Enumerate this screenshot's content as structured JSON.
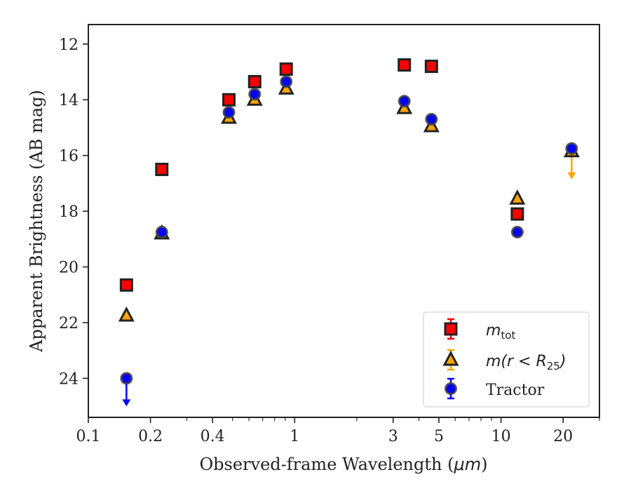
{
  "chart_data": {
    "type": "scatter",
    "xlabel_prefix": "Observed-frame Wavelength (",
    "xlabel_unit": "μm",
    "xlabel_suffix": ")",
    "ylabel": "Apparent Brightness (AB mag)",
    "xscale": "log",
    "xlim": [
      0.1,
      30
    ],
    "ylim": [
      25.4,
      11.3
    ],
    "y_inverted": true,
    "xticks": [
      0.1,
      0.2,
      0.4,
      1,
      3,
      5,
      10,
      20
    ],
    "xtick_labels": [
      "0.1",
      "0.2",
      "0.4",
      "1",
      "3",
      "5",
      "10",
      "20"
    ],
    "yticks": [
      12,
      14,
      16,
      18,
      20,
      22,
      24
    ],
    "ytick_labels": [
      "12",
      "14",
      "16",
      "18",
      "20",
      "22",
      "24"
    ],
    "grid": false,
    "legend_position": "lower-right",
    "series": [
      {
        "name": "m_tot",
        "legend_math": "m",
        "legend_sub": "tot",
        "marker": "square",
        "color": "#ff0000",
        "edge_color": "#222222",
        "points": [
          {
            "x": 0.153,
            "y": 20.65
          },
          {
            "x": 0.227,
            "y": 16.5
          },
          {
            "x": 0.48,
            "y": 14.0
          },
          {
            "x": 0.64,
            "y": 13.35
          },
          {
            "x": 0.91,
            "y": 12.9
          },
          {
            "x": 3.4,
            "y": 12.75
          },
          {
            "x": 4.6,
            "y": 12.8
          },
          {
            "x": 12.0,
            "y": 18.1
          }
        ]
      },
      {
        "name": "m(r < R25)",
        "legend_math": "m(r < R",
        "legend_sub": "25",
        "legend_math_end": ")",
        "marker": "triangle",
        "color": "#ffa500",
        "edge_color": "#222222",
        "points": [
          {
            "x": 0.153,
            "y": 21.75
          },
          {
            "x": 0.227,
            "y": 18.8
          },
          {
            "x": 0.48,
            "y": 14.65
          },
          {
            "x": 0.64,
            "y": 14.0
          },
          {
            "x": 0.91,
            "y": 13.6
          },
          {
            "x": 3.4,
            "y": 14.3
          },
          {
            "x": 4.6,
            "y": 14.95
          },
          {
            "x": 12.0,
            "y": 17.55
          },
          {
            "x": 22.0,
            "y": 15.85,
            "upper_limit": true
          }
        ]
      },
      {
        "name": "Tractor",
        "marker": "circle",
        "color": "#0000ff",
        "edge_color": "#444444",
        "points": [
          {
            "x": 0.153,
            "y": 24.0,
            "upper_limit": true
          },
          {
            "x": 0.227,
            "y": 18.75
          },
          {
            "x": 0.48,
            "y": 14.45
          },
          {
            "x": 0.64,
            "y": 13.8
          },
          {
            "x": 0.91,
            "y": 13.35
          },
          {
            "x": 3.4,
            "y": 14.05
          },
          {
            "x": 4.6,
            "y": 14.7
          },
          {
            "x": 12.0,
            "y": 18.75
          },
          {
            "x": 22.0,
            "y": 15.75
          }
        ]
      }
    ]
  }
}
